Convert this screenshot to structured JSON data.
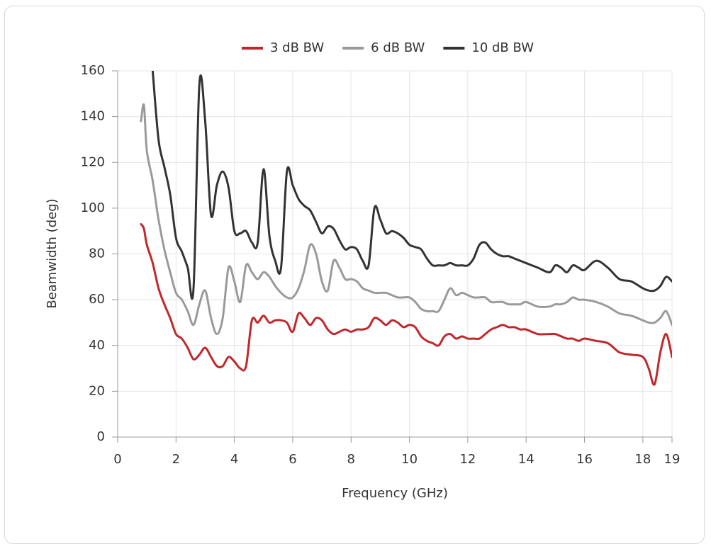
{
  "chart_data": {
    "type": "line",
    "x_label": "Frequency (GHz)",
    "y_label": "Beamwidth (deg)",
    "xlim": [
      0,
      19
    ],
    "xticks": [
      0,
      2,
      4,
      6,
      8,
      10,
      12,
      14,
      16,
      18,
      19
    ],
    "ylim": [
      0,
      160
    ],
    "yticks": [
      0,
      20,
      40,
      60,
      80,
      100,
      120,
      140,
      160
    ],
    "grid": true,
    "legend": "top",
    "x": [
      0.8,
      0.9,
      1.0,
      1.2,
      1.4,
      1.6,
      1.8,
      2.0,
      2.2,
      2.4,
      2.6,
      2.8,
      3.0,
      3.2,
      3.4,
      3.6,
      3.8,
      4.0,
      4.2,
      4.4,
      4.6,
      4.8,
      5.0,
      5.2,
      5.4,
      5.6,
      5.8,
      6.0,
      6.2,
      6.4,
      6.6,
      6.8,
      7.0,
      7.2,
      7.4,
      7.6,
      7.8,
      8.0,
      8.2,
      8.4,
      8.6,
      8.8,
      9.0,
      9.2,
      9.4,
      9.6,
      9.8,
      10.0,
      10.2,
      10.4,
      10.6,
      10.8,
      11.0,
      11.2,
      11.4,
      11.6,
      11.8,
      12.0,
      12.2,
      12.4,
      12.6,
      12.8,
      13.0,
      13.2,
      13.4,
      13.6,
      13.8,
      14.0,
      14.4,
      14.8,
      15.0,
      15.2,
      15.4,
      15.6,
      15.8,
      16.0,
      16.4,
      16.8,
      17.2,
      17.6,
      18.0,
      18.2,
      18.4,
      18.6,
      18.8,
      19.0
    ],
    "series": [
      {
        "name": "3 dB BW",
        "color": "#c0282d",
        "values": [
          93,
          91,
          84,
          76,
          65,
          58,
          52,
          45,
          43,
          39,
          34,
          36,
          39,
          35,
          31,
          31,
          35,
          33,
          30,
          31,
          51,
          50,
          53,
          50,
          51,
          51,
          50,
          46,
          54,
          52,
          49,
          52,
          51,
          47,
          45,
          46,
          47,
          46,
          47,
          47,
          48,
          52,
          51,
          49,
          51,
          50,
          48,
          49,
          48,
          44,
          42,
          41,
          40,
          44,
          45,
          43,
          44,
          43,
          43,
          43,
          45,
          47,
          48,
          49,
          48,
          48,
          47,
          47,
          45,
          45,
          45,
          44,
          43,
          43,
          42,
          43,
          42,
          41,
          37,
          36,
          35,
          30,
          23,
          37,
          45,
          35
        ]
      },
      {
        "name": "6 dB BW",
        "color": "#9a9a9a",
        "values": [
          138,
          145,
          125,
          112,
          95,
          82,
          72,
          63,
          60,
          55,
          49,
          58,
          64,
          52,
          45,
          52,
          74,
          68,
          59,
          75,
          72,
          69,
          72,
          70,
          66,
          63,
          61,
          61,
          65,
          73,
          84,
          80,
          68,
          64,
          77,
          74,
          69,
          69,
          68,
          65,
          64,
          63,
          63,
          63,
          62,
          61,
          61,
          61,
          59,
          56,
          55,
          55,
          55,
          60,
          65,
          62,
          63,
          62,
          61,
          61,
          61,
          59,
          59,
          59,
          58,
          58,
          58,
          59,
          57,
          57,
          58,
          58,
          59,
          61,
          60,
          60,
          59,
          57,
          54,
          53,
          51,
          50,
          50,
          52,
          55,
          49
        ]
      },
      {
        "name": "10 dB BW",
        "color": "#333333",
        "values": [
          null,
          null,
          null,
          160,
          130,
          118,
          106,
          87,
          81,
          74,
          65,
          154,
          138,
          97,
          110,
          116,
          109,
          90,
          89,
          90,
          85,
          85,
          117,
          88,
          77,
          74,
          116,
          110,
          104,
          101,
          99,
          94,
          89,
          92,
          91,
          86,
          82,
          83,
          82,
          77,
          75,
          100,
          95,
          89,
          90,
          89,
          87,
          84,
          83,
          82,
          78,
          75,
          75,
          75,
          76,
          75,
          75,
          75,
          78,
          84,
          85,
          82,
          80,
          79,
          79,
          78,
          77,
          76,
          74,
          72,
          75,
          74,
          72,
          75,
          74,
          73,
          77,
          74,
          69,
          68,
          65,
          64,
          64,
          66,
          70,
          68
        ]
      }
    ]
  }
}
